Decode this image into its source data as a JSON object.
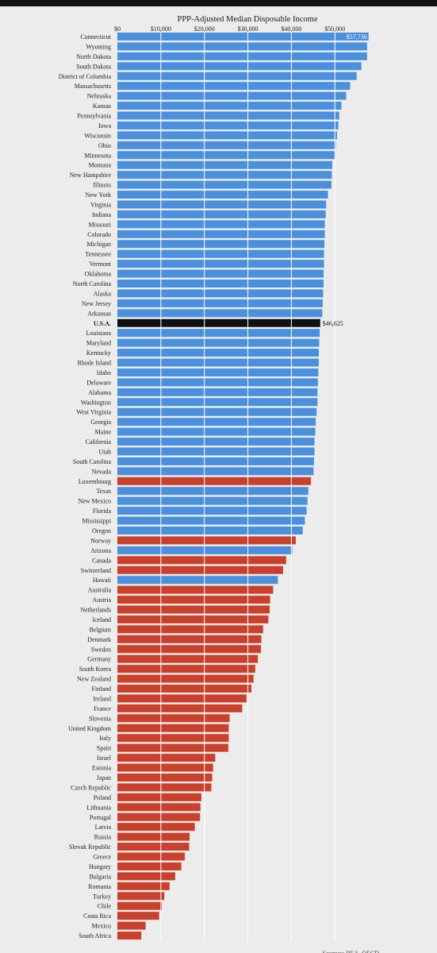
{
  "chart_data": {
    "type": "bar",
    "orientation": "horizontal",
    "title": "PPP-Adjusted Median Disposable Income",
    "source": "Sources: BEA, OECD",
    "xlim": [
      0,
      60000
    ],
    "xticks": [
      "$0",
      "$10,000",
      "$20,000",
      "$30,000",
      "$40,000",
      "$50,000"
    ],
    "colors": {
      "us_state": "#4a90dc",
      "country": "#c9412c",
      "usa_total": "#111111"
    },
    "categories": [
      "Connecticut",
      "Wyoming",
      "North Dakota",
      "South Dakota",
      "District of Columbia",
      "Massachusetts",
      "Nebraska",
      "Kansas",
      "Pennsylvania",
      "Iowa",
      "Wisconsin",
      "Ohio",
      "Minnesota",
      "Montana",
      "New Hampshire",
      "Illinois",
      "New York",
      "Virginia",
      "Indiana",
      "Missouri",
      "Colorado",
      "Michigan",
      "Tennessee",
      "Vermont",
      "Oklahoma",
      "North Carolina",
      "Alaska",
      "New Jersey",
      "Arkansas",
      "U.S.A.",
      "Louisiana",
      "Maryland",
      "Kentucky",
      "Rhode Island",
      "Idaho",
      "Delaware",
      "Alabama",
      "Washington",
      "West Virginia",
      "Georgia",
      "Maine",
      "California",
      "Utah",
      "South Carolina",
      "Nevada",
      "Luxembourg",
      "Texas",
      "New Mexico",
      "Florida",
      "Mississippi",
      "Oregon",
      "Norway",
      "Arizona",
      "Canada",
      "Switzerland",
      "Hawaii",
      "Australia",
      "Austria",
      "Netherlands",
      "Iceland",
      "Belgium",
      "Denmark",
      "Sweden",
      "Germany",
      "South Korea",
      "New Zealand",
      "Finland",
      "Ireland",
      "France",
      "Slovenia",
      "United Kingdom",
      "Italy",
      "Spain",
      "Israel",
      "Estonia",
      "Japan",
      "Czech Republic",
      "Poland",
      "Lithuania",
      "Portugal",
      "Latvia",
      "Russia",
      "Slovak Republic",
      "Greece",
      "Hungary",
      "Bulgaria",
      "Romania",
      "Turkey",
      "Chile",
      "Costa Rica",
      "Mexico",
      "South Africa"
    ],
    "values": [
      57736,
      57400,
      57400,
      56100,
      55000,
      53500,
      52600,
      51500,
      51000,
      50800,
      50500,
      50200,
      50100,
      49400,
      49300,
      49200,
      48400,
      48000,
      47900,
      47700,
      47700,
      47600,
      47500,
      47500,
      47400,
      47400,
      47300,
      47200,
      47100,
      46625,
      46500,
      46400,
      46300,
      46300,
      46200,
      46100,
      46000,
      46000,
      45800,
      45600,
      45500,
      45300,
      45300,
      45200,
      45100,
      44500,
      43900,
      43700,
      43500,
      43100,
      42600,
      41000,
      40200,
      38800,
      38100,
      36900,
      35800,
      35100,
      35000,
      34700,
      33500,
      33100,
      33000,
      32300,
      31700,
      31300,
      30800,
      29700,
      28700,
      25800,
      25600,
      25600,
      25500,
      22500,
      22000,
      21800,
      21600,
      19300,
      19100,
      19000,
      17800,
      16600,
      16500,
      15500,
      14700,
      13300,
      12000,
      10800,
      10200,
      9600,
      6500,
      5500
    ],
    "groups": [
      "s",
      "s",
      "s",
      "s",
      "s",
      "s",
      "s",
      "s",
      "s",
      "s",
      "s",
      "s",
      "s",
      "s",
      "s",
      "s",
      "s",
      "s",
      "s",
      "s",
      "s",
      "s",
      "s",
      "s",
      "s",
      "s",
      "s",
      "s",
      "s",
      "u",
      "s",
      "s",
      "s",
      "s",
      "s",
      "s",
      "s",
      "s",
      "s",
      "s",
      "s",
      "s",
      "s",
      "s",
      "s",
      "c",
      "s",
      "s",
      "s",
      "s",
      "s",
      "c",
      "s",
      "c",
      "c",
      "s",
      "c",
      "c",
      "c",
      "c",
      "c",
      "c",
      "c",
      "c",
      "c",
      "c",
      "c",
      "c",
      "c",
      "c",
      "c",
      "c",
      "c",
      "c",
      "c",
      "c",
      "c",
      "c",
      "c",
      "c",
      "c",
      "c",
      "c",
      "c",
      "c",
      "c",
      "c",
      "c",
      "c",
      "c",
      "c",
      "c"
    ],
    "data_labels": [
      {
        "category": "Connecticut",
        "text": "$57,736"
      },
      {
        "category": "U.S.A.",
        "text": "$46,625"
      }
    ],
    "grid": true
  }
}
